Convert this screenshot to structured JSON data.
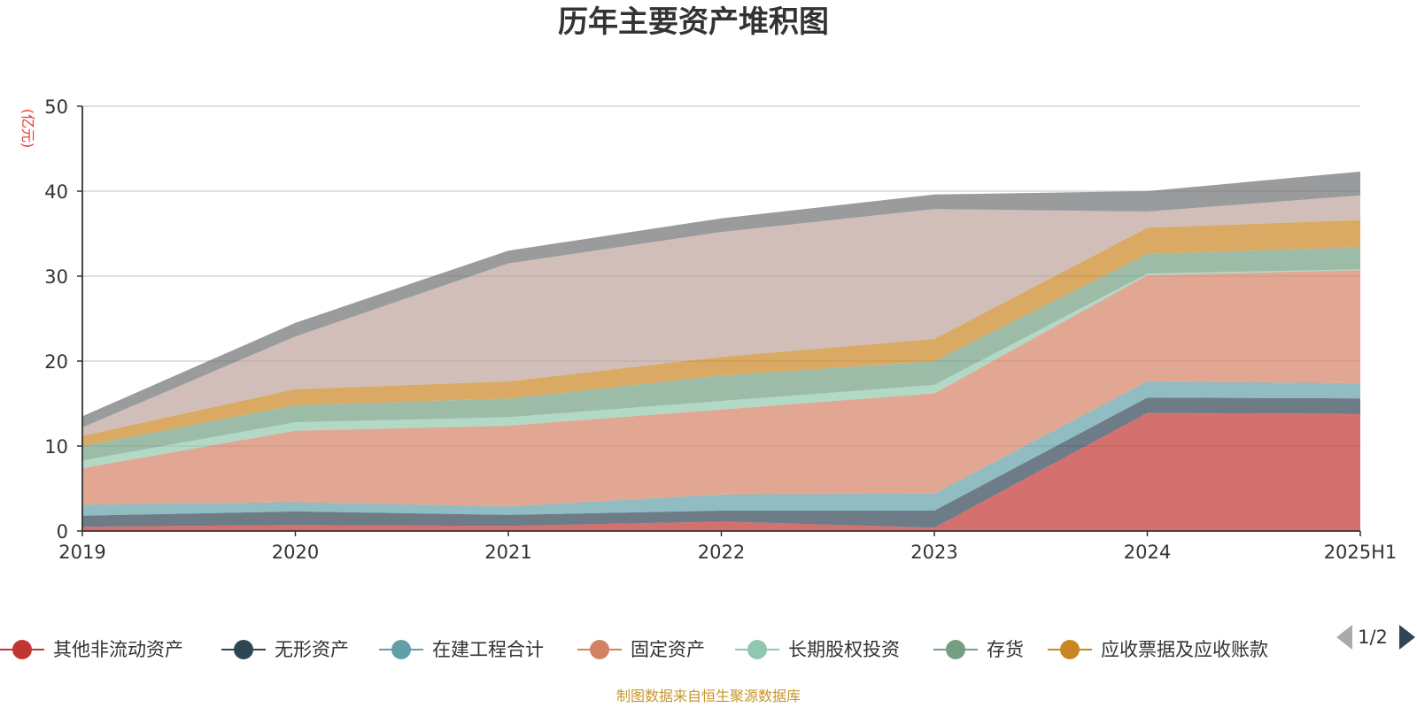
{
  "chart_data": {
    "type": "area",
    "stacked": true,
    "title": "历年主要资产堆积图",
    "ylabel": "(亿元)",
    "categories": [
      "2019",
      "2020",
      "2021",
      "2022",
      "2023",
      "2024",
      "2025H1"
    ],
    "ylim": [
      0,
      50
    ],
    "yticks": [
      0,
      10,
      20,
      30,
      40,
      50
    ],
    "grid": true,
    "series": [
      {
        "name": "其他非流动资产",
        "color": "#c23531",
        "values": [
          0.5,
          0.7,
          0.6,
          1.1,
          0.4,
          13.9,
          13.8
        ]
      },
      {
        "name": "无形资产",
        "color": "#2f4554",
        "values": [
          1.3,
          1.6,
          1.3,
          1.3,
          2.0,
          1.8,
          1.8
        ]
      },
      {
        "name": "在建工程合计",
        "color": "#61a0a8",
        "values": [
          1.3,
          1.1,
          1.0,
          1.9,
          2.0,
          1.9,
          1.8
        ]
      },
      {
        "name": "固定资产",
        "color": "#d48265",
        "values": [
          4.3,
          8.4,
          9.5,
          10.0,
          11.8,
          12.5,
          13.3
        ]
      },
      {
        "name": "长期股权投资",
        "color": "#91c7ae",
        "values": [
          0.9,
          1.0,
          1.0,
          1.0,
          1.0,
          0.2,
          0.1
        ]
      },
      {
        "name": "存货",
        "color": "#749f83",
        "values": [
          1.7,
          2.0,
          2.2,
          3.0,
          2.8,
          2.3,
          2.6
        ]
      },
      {
        "name": "应收票据及应收账款",
        "color": "#ca8622",
        "values": [
          1.2,
          1.9,
          2.0,
          2.2,
          2.6,
          3.1,
          3.2
        ]
      },
      {
        "name": "",
        "color": "#bda29a",
        "values": [
          1.0,
          6.2,
          13.9,
          14.7,
          15.3,
          1.9,
          2.9
        ]
      },
      {
        "name": "",
        "color": "#6e7074",
        "values": [
          1.3,
          1.6,
          1.5,
          1.6,
          1.7,
          2.4,
          2.8
        ]
      }
    ]
  },
  "legend": {
    "page": "1/2"
  },
  "source_note": "制图数据来自恒生聚源数据库"
}
